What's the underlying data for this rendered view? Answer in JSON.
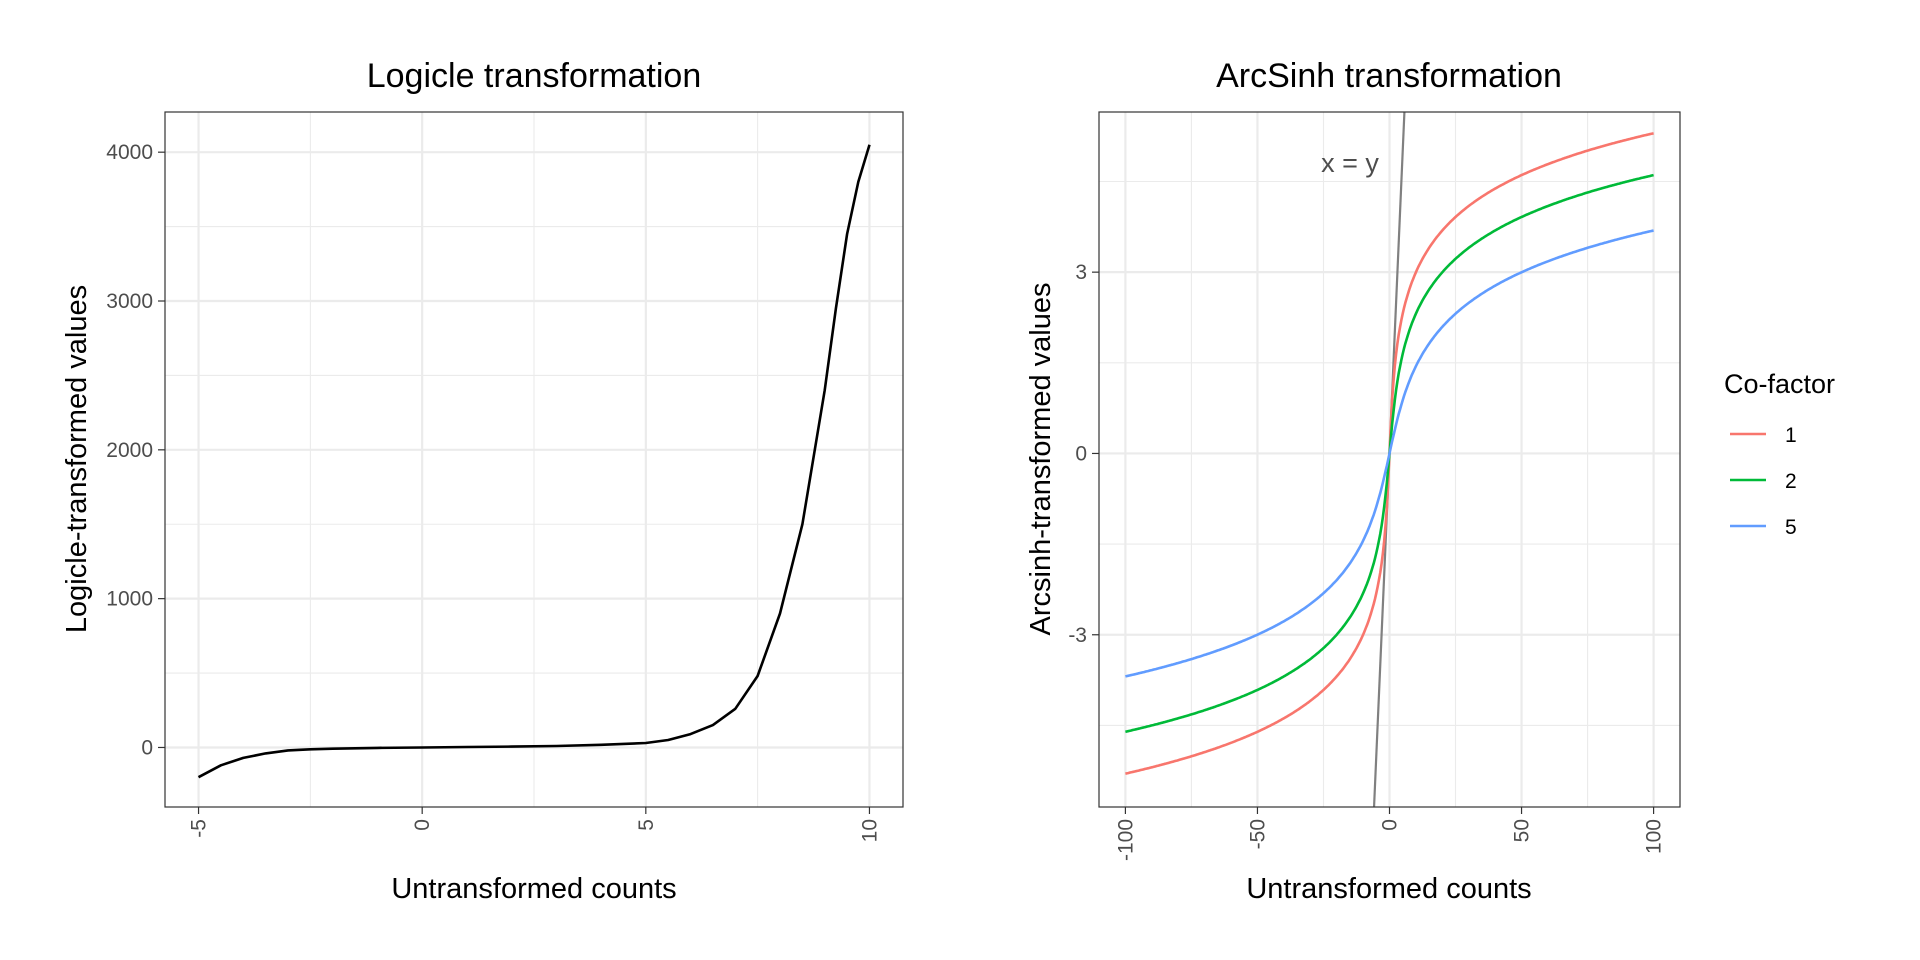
{
  "chart_data": [
    {
      "type": "line",
      "title": "Logicle transformation",
      "xlabel": "Untransformed counts",
      "ylabel": "Logicle-transformed values",
      "xlim": [
        -5.75,
        10.75
      ],
      "ylim": [
        -400,
        4270
      ],
      "x_ticks": [
        -5,
        0,
        5,
        10
      ],
      "x_tick_labels": [
        "-5",
        "0",
        "5",
        "10"
      ],
      "y_ticks": [
        0,
        1000,
        2000,
        3000,
        4000
      ],
      "y_tick_labels": [
        "0",
        "1000",
        "2000",
        "3000",
        "4000"
      ],
      "grid": true,
      "series": [
        {
          "color": "#000000",
          "x": [
            -5,
            -4.5,
            -4,
            -3.5,
            -3,
            -2.5,
            -2,
            -1,
            0,
            1,
            2,
            3,
            4,
            5,
            5.5,
            6,
            6.5,
            7,
            7.5,
            8,
            8.5,
            9,
            9.25,
            9.5,
            9.75,
            10
          ],
          "y": [
            -200,
            -120,
            -70,
            -40,
            -20,
            -12,
            -8,
            -3,
            0,
            3,
            6,
            10,
            18,
            30,
            50,
            90,
            150,
            260,
            480,
            900,
            1500,
            2400,
            2950,
            3450,
            3800,
            4050
          ]
        }
      ]
    },
    {
      "type": "line",
      "title": "ArcSinh transformation",
      "xlabel": "Untransformed counts",
      "ylabel": "Arcsinh-transformed values",
      "xlim": [
        -110,
        110
      ],
      "ylim": [
        -5.85,
        5.65
      ],
      "x_ticks": [
        -100,
        -50,
        0,
        50,
        100
      ],
      "x_tick_labels": [
        "-100",
        "-50",
        "0",
        "50",
        "100"
      ],
      "y_ticks": [
        -3,
        0,
        3
      ],
      "y_tick_labels": [
        "-3",
        "0",
        "3"
      ],
      "grid": true,
      "legend": {
        "title": "Co-factor",
        "placement": "right",
        "entries": [
          {
            "label": "1",
            "color": "#F8766D"
          },
          {
            "label": "2",
            "color": "#00BA38"
          },
          {
            "label": "5",
            "color": "#619CFF"
          }
        ]
      },
      "series": [
        {
          "name": "1",
          "color": "#F8766D",
          "cofactor": 1
        },
        {
          "name": "2",
          "color": "#00BA38",
          "cofactor": 2
        },
        {
          "name": "5",
          "color": "#619CFF",
          "cofactor": 5
        }
      ],
      "reference_line": {
        "label": "x = y",
        "color": "#808080",
        "slope": 1,
        "intercept": 0
      }
    }
  ]
}
